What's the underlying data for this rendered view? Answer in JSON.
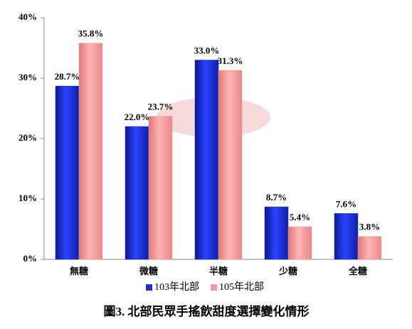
{
  "chart_data": {
    "type": "bar",
    "title": "圖3. 北部民眾手搖飲甜度選擇變化情形",
    "categories": [
      "無糖",
      "微糖",
      "半糖",
      "少糖",
      "全糖"
    ],
    "series": [
      {
        "name": "103年北部",
        "color": "#1f2fd0",
        "values": [
          28.7,
          22.0,
          33.0,
          8.7,
          7.6
        ],
        "value_labels": [
          "28.7%",
          "22.0%",
          "33.0%",
          "8.7%",
          "7.6%"
        ]
      },
      {
        "name": "105年北部",
        "color": "#f49a9a",
        "values": [
          35.8,
          23.7,
          31.3,
          5.4,
          3.8
        ],
        "value_labels": [
          "35.8%",
          "23.7%",
          "31.3%",
          "5.4%",
          "3.8%"
        ]
      }
    ],
    "ylim": [
      0,
      40
    ],
    "yticks": [
      {
        "value": 0,
        "label": "0%"
      },
      {
        "value": 10,
        "label": "10%"
      },
      {
        "value": 20,
        "label": "20%"
      },
      {
        "value": 30,
        "label": "30%"
      },
      {
        "value": 40,
        "label": "40%"
      }
    ],
    "grid": false
  }
}
